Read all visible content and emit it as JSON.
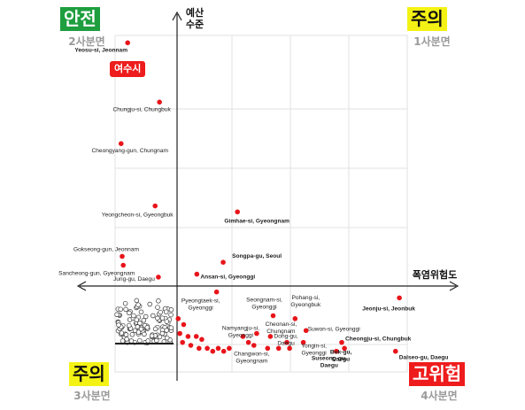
{
  "quadrants": {
    "top_left": {
      "label": "안전",
      "sub": "2사분면",
      "bg": "#1e9e3e",
      "fg": "#ffffff"
    },
    "top_right": {
      "label": "주의",
      "sub": "1사분면",
      "bg": "#f4f214",
      "fg": "#111111"
    },
    "bottom_left": {
      "label": "주의",
      "sub": "3사분면",
      "bg": "#f4f214",
      "fg": "#111111"
    },
    "bottom_right": {
      "label": "고위험",
      "sub": "4사분면",
      "bg": "#ee1c1c",
      "fg": "#ffffff"
    }
  },
  "highlight": {
    "label": "여수시",
    "color": "#ee1c1c"
  },
  "chart_data": {
    "type": "scatter",
    "ylabel": "예산\n수준",
    "xlabel": "폭염위험도",
    "grid": true,
    "point_color": "#e8141a",
    "labeled_points": [
      {
        "name": "Yeosu-si, Jeonnam",
        "x": -0.9,
        "y": 0.82,
        "bold": true
      },
      {
        "name": "Chungju-si, Chungbuk",
        "x": -0.32,
        "y": 0.62,
        "bold": false
      },
      {
        "name": "Cheongyang-gun, Chungnam",
        "x": -1.02,
        "y": 0.48,
        "bold": false
      },
      {
        "name": "Yeongcheon-si, Gyeongbuk",
        "x": -0.4,
        "y": 0.27,
        "bold": false
      },
      {
        "name": "Gimhae-si, Gyeongnam",
        "x": 1.1,
        "y": 0.25,
        "bold": true
      },
      {
        "name": "Gokseong-gun, Jeonnam",
        "x": -1.0,
        "y": 0.1,
        "bold": false
      },
      {
        "name": "Sancheong-gun, Gyeongnam",
        "x": -0.98,
        "y": 0.07,
        "bold": false
      },
      {
        "name": "Songpa-gu, Seoul",
        "x": 0.84,
        "y": 0.08,
        "bold": true
      },
      {
        "name": "Ansan-si, Gyeonggi",
        "x": 0.36,
        "y": 0.04,
        "bold": true
      },
      {
        "name": "Jung-gu, Daegu",
        "x": -0.34,
        "y": 0.03,
        "bold": false
      },
      {
        "name": "Pyeongtaek-si, Gyeonggi",
        "x": 0.72,
        "y": -0.02,
        "bold": false
      },
      {
        "name": "Seongnam-si, Gyeonggi",
        "x": 1.75,
        "y": -0.1,
        "bold": false
      },
      {
        "name": "Pohang-si, Gyeongbuk",
        "x": 2.15,
        "y": -0.11,
        "bold": false
      },
      {
        "name": "Jeonju-si, Jeonbuk",
        "x": 4.05,
        "y": -0.04,
        "bold": true
      },
      {
        "name": "Namyangju-si, Gyeonggi",
        "x": 1.45,
        "y": -0.16,
        "bold": false
      },
      {
        "name": "Suwon-si, Gyeonggi",
        "x": 2.35,
        "y": -0.15,
        "bold": false
      },
      {
        "name": "Cheonan-si, Chungnam",
        "x": 1.7,
        "y": -0.17,
        "bold": false
      },
      {
        "name": "Yongin-si, Gyeonggi",
        "x": 2.3,
        "y": -0.19,
        "bold": false
      },
      {
        "name": "Cheongju-si, Chungbuk",
        "x": 3.0,
        "y": -0.19,
        "bold": true
      },
      {
        "name": "Dong-gu, Daegu",
        "x": 2.05,
        "y": -0.21,
        "bold": false
      },
      {
        "name": "Changwon-si, Gyeongnam",
        "x": 1.65,
        "y": -0.21,
        "bold": false
      },
      {
        "name": "Buk-gu, Daegu",
        "x": 3.05,
        "y": -0.21,
        "bold": true
      },
      {
        "name": "Suseong-gu, Daegu",
        "x": 2.9,
        "y": -0.22,
        "bold": true
      },
      {
        "name": "Dalseo-gu, Daegu",
        "x": 3.98,
        "y": -0.22,
        "bold": true
      }
    ],
    "unlabeled_red_points": [
      {
        "x": 0.02,
        "y": -0.11
      },
      {
        "x": 0.12,
        "y": -0.13
      },
      {
        "x": 0.05,
        "y": -0.16
      },
      {
        "x": 0.2,
        "y": -0.17
      },
      {
        "x": 0.35,
        "y": -0.17
      },
      {
        "x": 0.45,
        "y": -0.18
      },
      {
        "x": 0.1,
        "y": -0.19
      },
      {
        "x": 0.25,
        "y": -0.2
      },
      {
        "x": 0.55,
        "y": -0.21
      },
      {
        "x": 0.75,
        "y": -0.21
      },
      {
        "x": 0.95,
        "y": -0.21
      },
      {
        "x": 0.4,
        "y": -0.21
      },
      {
        "x": 0.65,
        "y": -0.22
      },
      {
        "x": 1.2,
        "y": -0.17
      },
      {
        "x": 1.3,
        "y": -0.19
      },
      {
        "x": 0.85,
        "y": -0.22
      },
      {
        "x": 1.4,
        "y": -0.2
      },
      {
        "x": 1.85,
        "y": -0.21
      },
      {
        "x": 2.0,
        "y": -0.19
      }
    ],
    "unlabeled_hollow_points_count": 120,
    "note_hollow": "dense cluster of hollow black circles in third quadrant near origin"
  }
}
